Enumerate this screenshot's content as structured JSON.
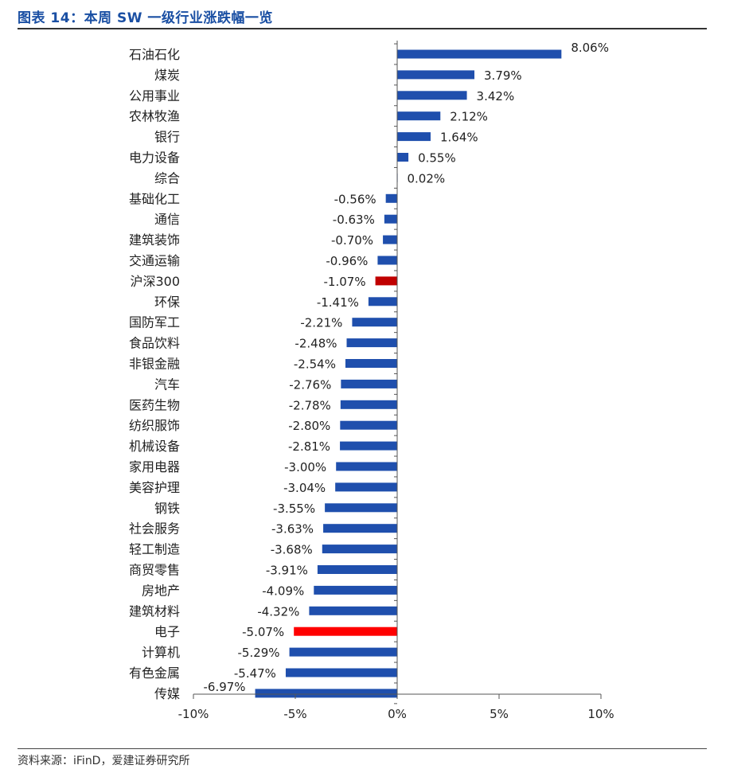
{
  "header": {
    "title": "图表 14：本周 SW 一级行业涨跌幅一览"
  },
  "footer": {
    "source": "资料来源：iFinD，爱建证券研究所"
  },
  "colors": {
    "bar": "#1f4fad",
    "highlight_index": "#c00000",
    "highlight_electronics": "#ff0000",
    "title": "#1a4fa3"
  },
  "chart_data": {
    "type": "bar",
    "orientation": "horizontal",
    "title": "本周 SW 一级行业涨跌幅一览",
    "xlabel": "",
    "ylabel": "",
    "xlim": [
      -10,
      10
    ],
    "xticks": [
      -10,
      -5,
      0,
      5,
      10
    ],
    "xtick_labels": [
      "-10%",
      "-5%",
      "0%",
      "5%",
      "10%"
    ],
    "unit": "%",
    "categories": [
      "石油石化",
      "煤炭",
      "公用事业",
      "农林牧渔",
      "银行",
      "电力设备",
      "综合",
      "基础化工",
      "通信",
      "建筑装饰",
      "交通运输",
      "沪深300",
      "环保",
      "国防军工",
      "食品饮料",
      "非银金融",
      "汽车",
      "医药生物",
      "纺织服饰",
      "机械设备",
      "家用电器",
      "美容护理",
      "钢铁",
      "社会服务",
      "轻工制造",
      "商贸零售",
      "房地产",
      "建筑材料",
      "电子",
      "计算机",
      "有色金属",
      "传媒"
    ],
    "values": [
      8.06,
      3.79,
      3.42,
      2.12,
      1.64,
      0.55,
      0.02,
      -0.56,
      -0.63,
      -0.7,
      -0.96,
      -1.07,
      -1.41,
      -2.21,
      -2.48,
      -2.54,
      -2.76,
      -2.78,
      -2.8,
      -2.81,
      -3.0,
      -3.04,
      -3.55,
      -3.63,
      -3.68,
      -3.91,
      -4.09,
      -4.32,
      -5.07,
      -5.29,
      -5.47,
      -6.97
    ],
    "labels": [
      "8.06%",
      "3.79%",
      "3.42%",
      "2.12%",
      "1.64%",
      "0.55%",
      "0.02%",
      "-0.56%",
      "-0.63%",
      "-0.70%",
      "-0.96%",
      "-1.07%",
      "-1.41%",
      "-2.21%",
      "-2.48%",
      "-2.54%",
      "-2.76%",
      "-2.78%",
      "-2.80%",
      "-2.81%",
      "-3.00%",
      "-3.04%",
      "-3.55%",
      "-3.63%",
      "-3.68%",
      "-3.91%",
      "-4.09%",
      "-4.32%",
      "-5.07%",
      "-5.29%",
      "-5.47%",
      "-6.97%"
    ],
    "highlights": {
      "沪深300": "highlight_index",
      "电子": "highlight_electronics"
    },
    "grid": false,
    "legend": "none"
  }
}
